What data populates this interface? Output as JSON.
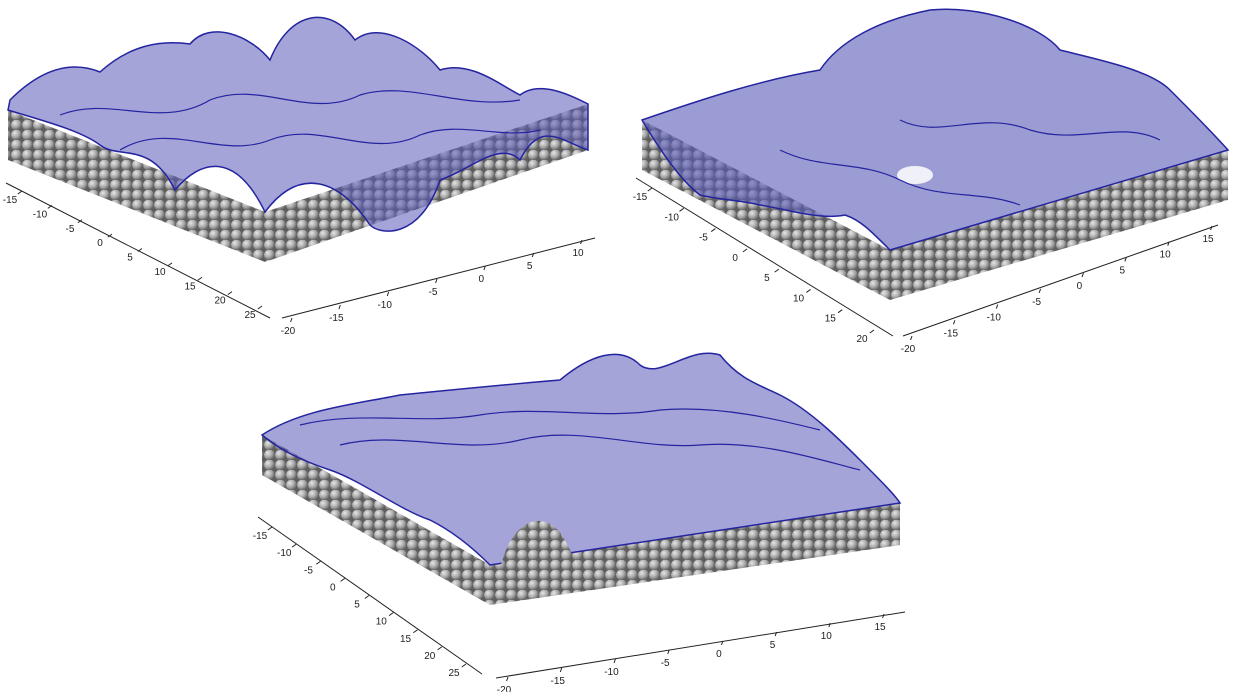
{
  "colors": {
    "sphere_light": "#e6e6e6",
    "sphere_mid": "#a8a8a8",
    "sphere_dark": "#5e5e5e",
    "surface_fill": "#5a5ab8",
    "surface_edge": "#2424a0",
    "axis": "#222222"
  },
  "panels": [
    {
      "id": "top-left",
      "x_axis_ticks": [
        "-15",
        "-10",
        "-5",
        "0",
        "5",
        "10",
        "15",
        "20",
        "25"
      ],
      "y_axis_ticks": [
        "-20",
        "-15",
        "-10",
        "-5",
        "0",
        "5",
        "10"
      ],
      "relief": "rough"
    },
    {
      "id": "top-right",
      "x_axis_ticks": [
        "-15",
        "-10",
        "-5",
        "0",
        "5",
        "10",
        "15",
        "20"
      ],
      "y_axis_ticks": [
        "-20",
        "-15",
        "-10",
        "-5",
        "0",
        "5",
        "10",
        "15"
      ],
      "relief": "flat"
    },
    {
      "id": "bottom",
      "x_axis_ticks": [
        "-15",
        "-10",
        "-5",
        "0",
        "5",
        "10",
        "15",
        "20",
        "25"
      ],
      "y_axis_ticks": [
        "-20",
        "-15",
        "-10",
        "-5",
        "0",
        "5",
        "10",
        "15"
      ],
      "relief": "medium"
    }
  ]
}
